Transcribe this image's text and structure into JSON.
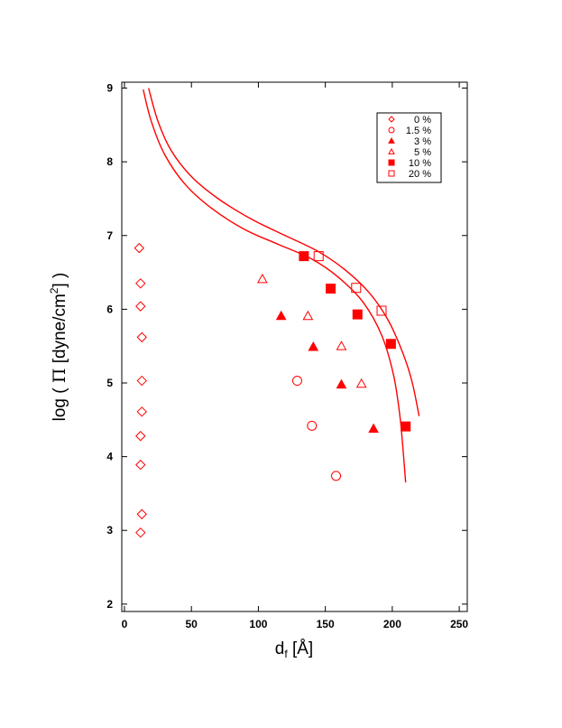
{
  "chart_data": {
    "type": "scatter",
    "title": "",
    "xlabel": {
      "main": "d",
      "sub": "f",
      "rest": " [Å]"
    },
    "ylabel": {
      "pre": "log ( ",
      "greek": "Π",
      "mid": " [dyne/cm",
      "sup": "2",
      "post": "] )"
    },
    "xlim": [
      -2,
      256
    ],
    "ylim": [
      1.9,
      9.08
    ],
    "xticks": [
      0,
      50,
      100,
      150,
      200,
      250
    ],
    "xtick_labels": [
      "0",
      "50",
      "100",
      "150",
      "200",
      "250"
    ],
    "yticks": [
      2,
      3,
      4,
      5,
      6,
      7,
      8,
      9
    ],
    "ytick_labels": [
      "2",
      "3",
      "4",
      "5",
      "6",
      "7",
      "8",
      "9"
    ],
    "grid": false,
    "legend_position": "top-right",
    "color": "#ff0000",
    "series": [
      {
        "name": "0 %",
        "marker": "diamond-open",
        "points": [
          [
            11,
            6.83
          ],
          [
            12,
            6.35
          ],
          [
            12,
            6.04
          ],
          [
            13,
            5.62
          ],
          [
            13,
            5.03
          ],
          [
            13,
            4.61
          ],
          [
            12,
            4.28
          ],
          [
            12,
            3.89
          ],
          [
            13,
            3.22
          ],
          [
            12,
            2.97
          ]
        ]
      },
      {
        "name": "1.5 %",
        "marker": "circle-open",
        "points": [
          [
            129,
            5.03
          ],
          [
            140,
            4.42
          ],
          [
            158,
            3.74
          ]
        ]
      },
      {
        "name": "3 %",
        "marker": "triangle-filled",
        "points": [
          [
            117,
            5.91
          ],
          [
            141,
            5.49
          ],
          [
            162,
            4.98
          ],
          [
            186,
            4.38
          ]
        ]
      },
      {
        "name": "5 %",
        "marker": "triangle-open",
        "points": [
          [
            103,
            6.41
          ],
          [
            137,
            5.91
          ],
          [
            162,
            5.5
          ],
          [
            177,
            4.99
          ]
        ]
      },
      {
        "name": "10 %",
        "marker": "square-filled",
        "points": [
          [
            134,
            6.72
          ],
          [
            154,
            6.28
          ],
          [
            174,
            5.93
          ],
          [
            199,
            5.53
          ],
          [
            210,
            4.41
          ]
        ]
      },
      {
        "name": "20 %",
        "marker": "square-open",
        "points": [
          [
            145,
            6.72
          ],
          [
            173,
            6.29
          ],
          [
            192,
            5.98
          ]
        ]
      }
    ],
    "curves": [
      {
        "points": [
          [
            14,
            8.98
          ],
          [
            20,
            8.55
          ],
          [
            30,
            8.1
          ],
          [
            45,
            7.7
          ],
          [
            65,
            7.37
          ],
          [
            90,
            7.08
          ],
          [
            115,
            6.88
          ],
          [
            140,
            6.68
          ],
          [
            160,
            6.43
          ],
          [
            178,
            6.1
          ],
          [
            192,
            5.65
          ],
          [
            201,
            5.1
          ],
          [
            206,
            4.5
          ],
          [
            210,
            3.65
          ]
        ]
      },
      {
        "points": [
          [
            18,
            9.0
          ],
          [
            25,
            8.55
          ],
          [
            35,
            8.15
          ],
          [
            50,
            7.8
          ],
          [
            70,
            7.5
          ],
          [
            95,
            7.22
          ],
          [
            120,
            7.0
          ],
          [
            145,
            6.78
          ],
          [
            165,
            6.53
          ],
          [
            183,
            6.22
          ],
          [
            197,
            5.85
          ],
          [
            208,
            5.4
          ],
          [
            215,
            5.0
          ],
          [
            220,
            4.55
          ]
        ]
      }
    ]
  }
}
